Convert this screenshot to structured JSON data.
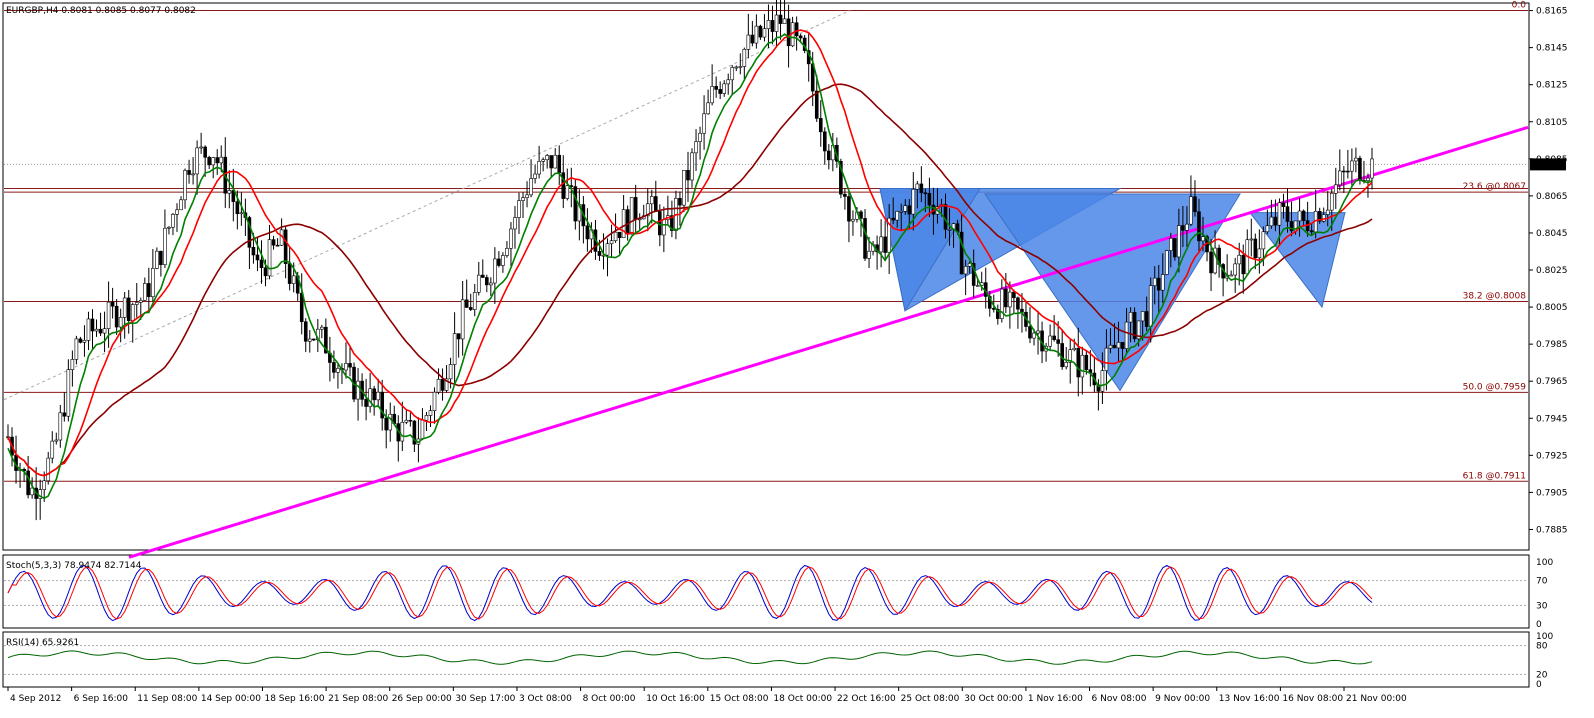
{
  "header": {
    "symbol_line": "EURGBP,H4  0.8081 0.8085 0.8077 0.8082"
  },
  "colors": {
    "fib_line": "#8b1a1a",
    "trendline": "#ff00ff",
    "ma_fast": "#ff0000",
    "ma_green": "#008000",
    "ma_slow": "#8b0000",
    "pattern_fill": "#4a86e8",
    "stoch_main": "#0000cd",
    "stoch_signal": "#ff0000",
    "rsi": "#006400"
  },
  "chart_data": [
    {
      "type": "candlestick",
      "panel": "main",
      "ylim": [
        0.7875,
        0.8168
      ],
      "yticks": [
        "0.8165",
        "0.8145",
        "0.8125",
        "0.8105",
        "0.8085",
        "0.8065",
        "0.8045",
        "0.8025",
        "0.8005",
        "0.7985",
        "0.7965",
        "0.7945",
        "0.7925",
        "0.7905",
        "0.7885"
      ],
      "current_price": "0.8082",
      "xticks": [
        "4 Sep 2012",
        "6 Sep 16:00",
        "11 Sep 08:00",
        "14 Sep 00:00",
        "18 Sep 16:00",
        "21 Sep 08:00",
        "26 Sep 00:00",
        "30 Sep 17:00",
        "3 Oct 08:00",
        "8 Oct 00:00",
        "10 Oct 16:00",
        "15 Oct 08:00",
        "18 Oct 00:00",
        "22 Oct 16:00",
        "25 Oct 08:00",
        "30 Oct 00:00",
        "1 Nov 16:00",
        "6 Nov 08:00",
        "9 Nov 00:00",
        "13 Nov 16:00",
        "16 Nov 08:00",
        "21 Nov 00:00"
      ],
      "close_path": [
        0.7935,
        0.7905,
        0.7925,
        0.7985,
        0.7995,
        0.8005,
        0.801,
        0.8045,
        0.8085,
        0.809,
        0.806,
        0.8025,
        0.804,
        0.7995,
        0.7985,
        0.7965,
        0.7955,
        0.794,
        0.7935,
        0.7965,
        0.8,
        0.802,
        0.8045,
        0.8075,
        0.8085,
        0.8055,
        0.804,
        0.805,
        0.8062,
        0.8045,
        0.808,
        0.812,
        0.814,
        0.815,
        0.816,
        0.814,
        0.8095,
        0.806,
        0.803,
        0.805,
        0.8068,
        0.806,
        0.803,
        0.801,
        0.8005,
        0.7995,
        0.7985,
        0.7975,
        0.7968,
        0.799,
        0.8,
        0.803,
        0.8058,
        0.803,
        0.8025,
        0.804,
        0.8055,
        0.805,
        0.8062,
        0.808,
        0.8082
      ],
      "levels": [
        {
          "label": "0.0",
          "value": 0.8165
        },
        {
          "label": "23.6 @0.8067",
          "value": 0.8067
        },
        {
          "label": "38.2 @0.8008",
          "value": 0.8008
        },
        {
          "label": "50.0 @0.7959",
          "value": 0.7959
        },
        {
          "label": "61.8 @0.7911",
          "value": 0.7911
        }
      ],
      "trendline": [
        [
          0.0,
          0.787
        ],
        [
          1.0,
          0.8102
        ]
      ]
    },
    {
      "type": "line",
      "panel": "stochastic",
      "label": "Stoch(5,3,3) 78.9474 82.7144",
      "ylim": [
        0,
        100
      ],
      "yticks": [
        "100",
        "70",
        "30",
        "0"
      ],
      "levels": [
        70,
        30
      ]
    },
    {
      "type": "line",
      "panel": "rsi",
      "label": "RSI(14) 65.9261",
      "ylim": [
        0,
        100
      ],
      "yticks": [
        "100",
        "80",
        "20",
        "0"
      ],
      "levels": [
        80,
        20
      ]
    }
  ]
}
